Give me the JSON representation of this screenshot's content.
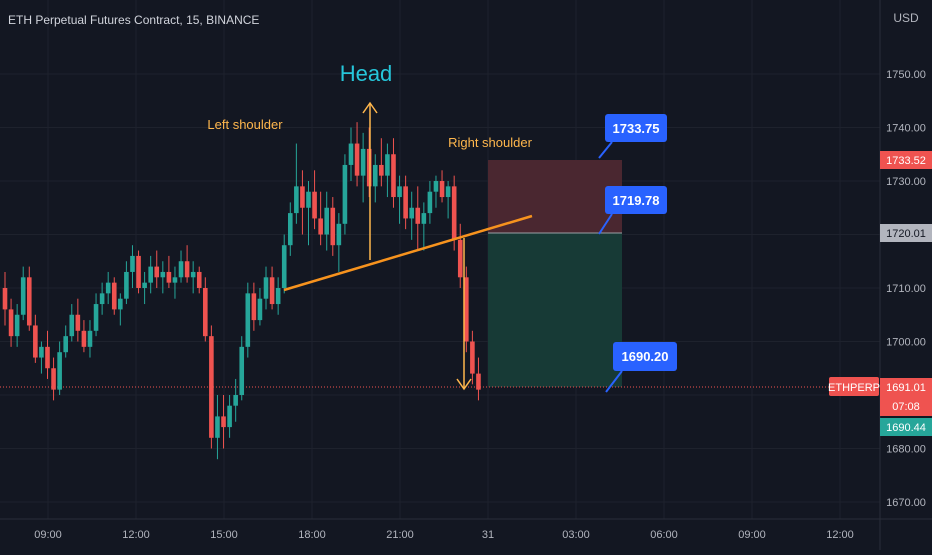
{
  "header": {
    "symbol_line": "ETH Perpetual Futures Contract, 15, BINANCE"
  },
  "price_axis": {
    "currency": "USD",
    "ticks": [
      {
        "value": 1750,
        "label": "1750.00"
      },
      {
        "value": 1740,
        "label": "1740.00"
      },
      {
        "value": 1730,
        "label": "1730.00"
      },
      {
        "value": 1720,
        "label": "1720.00"
      },
      {
        "value": 1710,
        "label": "1710.00"
      },
      {
        "value": 1700,
        "label": "1700.00"
      },
      {
        "value": 1690,
        "label": "1690.00"
      },
      {
        "value": 1680,
        "label": "1680.00"
      },
      {
        "value": 1670,
        "label": "1670.00"
      }
    ],
    "badges": {
      "stop": {
        "value": 1733.52,
        "label": "1733.52"
      },
      "entry": {
        "value": 1720.01,
        "label": "1720.01"
      },
      "last_price": {
        "value": 1691.01,
        "label": "1691.01",
        "countdown": "07:08"
      },
      "target": {
        "value": 1690.44,
        "label": "1690.44"
      }
    }
  },
  "time_axis": {
    "labels": [
      "09:00",
      "12:00",
      "15:00",
      "18:00",
      "21:00",
      "31",
      "03:00",
      "06:00",
      "09:00",
      "12:00"
    ]
  },
  "symbol_tag": "ETHPERP",
  "annotations": {
    "head": "Head",
    "left_shoulder": "Left shoulder",
    "right_shoulder": "Right shoulder"
  },
  "callouts": [
    {
      "label": "1733.75",
      "value": 1733.75
    },
    {
      "label": "1719.78",
      "value": 1719.78
    },
    {
      "label": "1690.20",
      "value": 1690.2
    }
  ],
  "colors": {
    "background": "#131722",
    "up": "#26a69a",
    "down": "#ef5350",
    "neckline": "#f7931e",
    "head_text": "#26c6da",
    "shoulder_text": "#ffb74d",
    "callout": "#2962ff",
    "stop_zone": "#4a2730",
    "target_zone": "#173a36"
  },
  "chart_data": {
    "type": "candlestick",
    "symbol": "ETHPERP",
    "interval": "15",
    "exchange": "BINANCE",
    "ylim": [
      1665,
      1760
    ],
    "candles": [
      [
        1710,
        1713,
        1703,
        1706
      ],
      [
        1706,
        1708,
        1699,
        1701
      ],
      [
        1701,
        1707,
        1699,
        1705
      ],
      [
        1705,
        1714,
        1704,
        1712
      ],
      [
        1712,
        1714,
        1702,
        1703
      ],
      [
        1703,
        1705,
        1696,
        1697
      ],
      [
        1697,
        1700,
        1694,
        1699
      ],
      [
        1699,
        1702,
        1693,
        1695
      ],
      [
        1695,
        1697,
        1689,
        1691
      ],
      [
        1691,
        1700,
        1690,
        1698
      ],
      [
        1698,
        1703,
        1697,
        1701
      ],
      [
        1701,
        1707,
        1700,
        1705
      ],
      [
        1705,
        1708,
        1700,
        1702
      ],
      [
        1702,
        1704,
        1698,
        1699
      ],
      [
        1699,
        1704,
        1697,
        1702
      ],
      [
        1702,
        1709,
        1701,
        1707
      ],
      [
        1707,
        1711,
        1705,
        1709
      ],
      [
        1709,
        1713,
        1707,
        1711
      ],
      [
        1711,
        1712,
        1705,
        1706
      ],
      [
        1706,
        1709,
        1703,
        1708
      ],
      [
        1708,
        1715,
        1707,
        1713
      ],
      [
        1713,
        1718,
        1710,
        1716
      ],
      [
        1716,
        1717,
        1709,
        1710
      ],
      [
        1710,
        1713,
        1707,
        1711
      ],
      [
        1711,
        1716,
        1709,
        1714
      ],
      [
        1714,
        1717,
        1710,
        1712
      ],
      [
        1712,
        1715,
        1709,
        1713
      ],
      [
        1713,
        1716,
        1710,
        1711
      ],
      [
        1711,
        1714,
        1708,
        1712
      ],
      [
        1712,
        1717,
        1711,
        1715
      ],
      [
        1715,
        1718,
        1711,
        1712
      ],
      [
        1712,
        1715,
        1709,
        1713
      ],
      [
        1713,
        1714,
        1709,
        1710
      ],
      [
        1710,
        1712,
        1700,
        1701
      ],
      [
        1701,
        1703,
        1680,
        1682
      ],
      [
        1682,
        1690,
        1678,
        1686
      ],
      [
        1686,
        1690,
        1680,
        1684
      ],
      [
        1684,
        1690,
        1682,
        1688
      ],
      [
        1688,
        1693,
        1685,
        1690
      ],
      [
        1690,
        1701,
        1689,
        1699
      ],
      [
        1699,
        1711,
        1697,
        1709
      ],
      [
        1709,
        1711,
        1702,
        1704
      ],
      [
        1704,
        1710,
        1703,
        1708
      ],
      [
        1708,
        1714,
        1706,
        1712
      ],
      [
        1712,
        1714,
        1706,
        1707
      ],
      [
        1707,
        1712,
        1705,
        1710
      ],
      [
        1710,
        1720,
        1709,
        1718
      ],
      [
        1718,
        1726,
        1716,
        1724
      ],
      [
        1724,
        1737,
        1722,
        1729
      ],
      [
        1729,
        1732,
        1720,
        1725
      ],
      [
        1725,
        1730,
        1718,
        1728
      ],
      [
        1728,
        1732,
        1721,
        1723
      ],
      [
        1723,
        1728,
        1718,
        1720
      ],
      [
        1720,
        1728,
        1717,
        1725
      ],
      [
        1725,
        1727,
        1716,
        1718
      ],
      [
        1718,
        1724,
        1713,
        1722
      ],
      [
        1722,
        1735,
        1720,
        1733
      ],
      [
        1733,
        1740,
        1730,
        1737
      ],
      [
        1737,
        1741,
        1729,
        1731
      ],
      [
        1731,
        1739,
        1726,
        1736
      ],
      [
        1736,
        1740,
        1727,
        1729
      ],
      [
        1729,
        1735,
        1726,
        1733
      ],
      [
        1733,
        1738,
        1729,
        1731
      ],
      [
        1731,
        1737,
        1727,
        1735
      ],
      [
        1735,
        1738,
        1725,
        1727
      ],
      [
        1727,
        1731,
        1722,
        1729
      ],
      [
        1729,
        1731,
        1721,
        1723
      ],
      [
        1723,
        1728,
        1719,
        1725
      ],
      [
        1725,
        1729,
        1717,
        1722
      ],
      [
        1722,
        1726,
        1717,
        1724
      ],
      [
        1724,
        1730,
        1722,
        1728
      ],
      [
        1728,
        1731,
        1725,
        1730
      ],
      [
        1730,
        1732,
        1726,
        1727
      ],
      [
        1727,
        1730,
        1723,
        1729
      ],
      [
        1729,
        1731,
        1717,
        1719
      ],
      [
        1719,
        1722,
        1710,
        1712
      ],
      [
        1712,
        1714,
        1698,
        1700
      ],
      [
        1700,
        1702,
        1692,
        1694
      ],
      [
        1694,
        1697,
        1689,
        1691
      ]
    ]
  }
}
